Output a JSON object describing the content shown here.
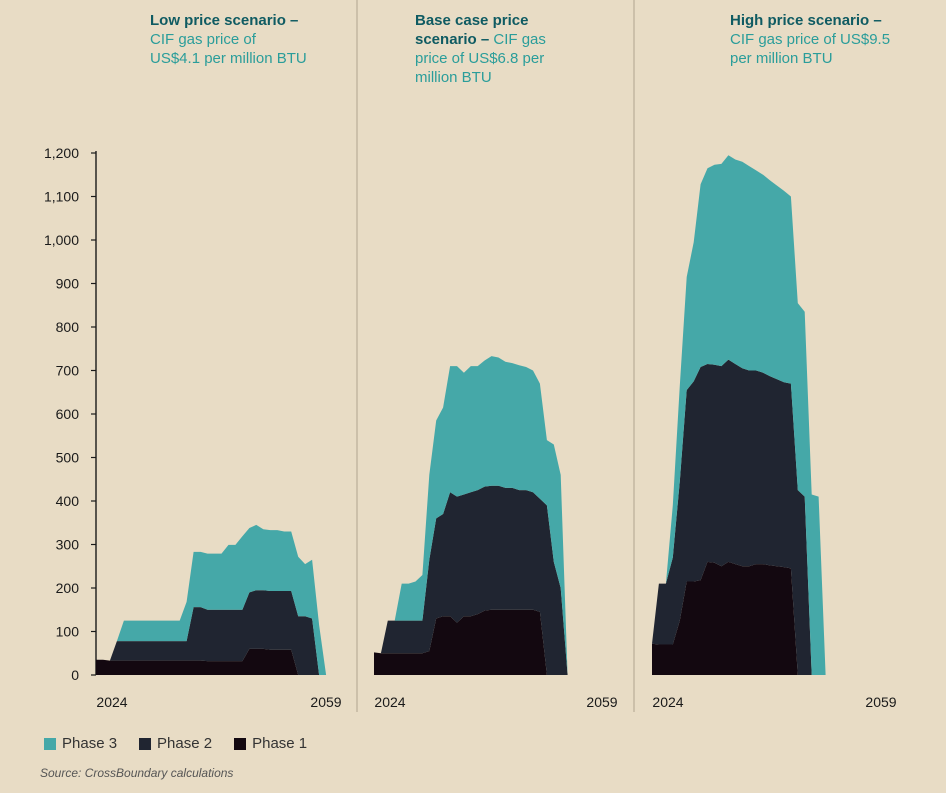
{
  "chart_data": {
    "type": "area",
    "stacked": true,
    "ylim": [
      0,
      1200
    ],
    "yticks": [
      0,
      100,
      200,
      300,
      400,
      500,
      600,
      700,
      800,
      900,
      1000,
      1100,
      1200
    ],
    "ytick_labels": [
      "0",
      "100",
      "200",
      "300",
      "400",
      "500",
      "600",
      "700",
      "800",
      "900",
      "1,000",
      "1,100",
      "1,200"
    ],
    "x_range": [
      2024,
      2059
    ],
    "x_tick_labels": [
      "2024",
      "2059"
    ],
    "legend": {
      "position": "bottom-left"
    },
    "colors": {
      "Phase 3": "#45a8a8",
      "Phase 2": "#202531",
      "Phase 1": "#130810"
    },
    "panels": [
      {
        "title_bold": "Low price scenario –",
        "title_lines": [
          "Low price scenario –",
          "CIF gas price of",
          "US$4.1 per million BTU"
        ],
        "x": [
          2024,
          2025,
          2026,
          2027,
          2028,
          2029,
          2030,
          2031,
          2032,
          2033,
          2034,
          2035,
          2036,
          2037,
          2038,
          2039,
          2040,
          2041,
          2042,
          2043,
          2044,
          2045,
          2046,
          2047,
          2048,
          2049,
          2050,
          2051,
          2052,
          2053,
          2054,
          2055,
          2056,
          2057,
          2058,
          2059
        ],
        "series": [
          {
            "name": "Phase 1",
            "values": [
              35,
              35,
              33,
              33,
              33,
              33,
              33,
              33,
              33,
              33,
              33,
              33,
              33,
              33,
              33,
              33,
              32,
              32,
              32,
              32,
              32,
              32,
              60,
              60,
              60,
              58,
              58,
              58,
              58,
              0,
              0,
              0,
              0,
              0,
              0,
              0
            ]
          },
          {
            "name": "Phase 2",
            "values": [
              0,
              0,
              0,
              45,
              45,
              45,
              45,
              45,
              45,
              45,
              45,
              45,
              45,
              45,
              123,
              123,
              118,
              118,
              118,
              118,
              118,
              118,
              130,
              135,
              135,
              135,
              135,
              135,
              135,
              135,
              135,
              130,
              0,
              0,
              0,
              0
            ]
          },
          {
            "name": "Phase 3",
            "values": [
              0,
              0,
              0,
              0,
              47,
              47,
              47,
              47,
              47,
              47,
              47,
              47,
              47,
              90,
              127,
              127,
              129,
              129,
              129,
              149,
              149,
              169,
              148,
              150,
              140,
              140,
              140,
              137,
              137,
              137,
              120,
              135,
              115,
              0,
              0,
              0
            ]
          }
        ]
      },
      {
        "title_bold": "Base case price scenario –",
        "title_lines": [
          "Base case price",
          "scenario – CIF gas",
          "price of US$6.8 per",
          "million BTU"
        ],
        "x": [
          2024,
          2025,
          2026,
          2027,
          2028,
          2029,
          2030,
          2031,
          2032,
          2033,
          2034,
          2035,
          2036,
          2037,
          2038,
          2039,
          2040,
          2041,
          2042,
          2043,
          2044,
          2045,
          2046,
          2047,
          2048,
          2049,
          2050,
          2051,
          2052,
          2053,
          2054,
          2055,
          2056,
          2057,
          2058,
          2059
        ],
        "series": [
          {
            "name": "Phase 1",
            "values": [
              52,
              50,
              50,
              50,
              50,
              50,
              50,
              50,
              55,
              130,
              135,
              135,
              120,
              135,
              135,
              140,
              148,
              150,
              150,
              150,
              150,
              150,
              150,
              150,
              145,
              0,
              0,
              0,
              0,
              0,
              0,
              0,
              0,
              0,
              0,
              0
            ]
          },
          {
            "name": "Phase 2",
            "values": [
              0,
              0,
              75,
              75,
              75,
              75,
              75,
              75,
              210,
              230,
              235,
              285,
              290,
              280,
              285,
              285,
              285,
              285,
              285,
              280,
              280,
              275,
              275,
              270,
              260,
              390,
              260,
              200,
              0,
              0,
              0,
              0,
              0,
              0,
              0,
              0
            ]
          },
          {
            "name": "Phase 3",
            "values": [
              0,
              0,
              0,
              0,
              85,
              85,
              90,
              105,
              195,
              225,
              245,
              290,
              300,
              280,
              290,
              285,
              290,
              298,
              295,
              290,
              287,
              287,
              283,
              280,
              265,
              150,
              270,
              260,
              0,
              0,
              0,
              0,
              0,
              0,
              0,
              0
            ]
          }
        ]
      },
      {
        "title_bold": "High price scenario –",
        "title_lines": [
          "High price scenario –",
          "CIF gas price of US$9.5",
          "per million BTU"
        ],
        "x": [
          2024,
          2025,
          2026,
          2027,
          2028,
          2029,
          2030,
          2031,
          2032,
          2033,
          2034,
          2035,
          2036,
          2037,
          2038,
          2039,
          2040,
          2041,
          2042,
          2043,
          2044,
          2045,
          2046,
          2047,
          2048,
          2049,
          2050,
          2051,
          2052,
          2053,
          2054,
          2055,
          2056,
          2057,
          2058,
          2059
        ],
        "series": [
          {
            "name": "Phase 1",
            "values": [
              72,
              70,
              70,
              70,
              125,
              215,
              215,
              218,
              260,
              258,
              250,
              260,
              255,
              250,
              250,
              255,
              255,
              252,
              250,
              248,
              245,
              0,
              0,
              0,
              0,
              0,
              0,
              0,
              0,
              0,
              0,
              0,
              0,
              0,
              0,
              0
            ]
          },
          {
            "name": "Phase 2",
            "values": [
              0,
              140,
              140,
              200,
              320,
              440,
              460,
              490,
              455,
              455,
              460,
              465,
              460,
              455,
              450,
              445,
              440,
              435,
              430,
              425,
              425,
              425,
              410,
              0,
              0,
              0,
              0,
              0,
              0,
              0,
              0,
              0,
              0,
              0,
              0,
              0
            ]
          },
          {
            "name": "Phase 3",
            "values": [
              0,
              0,
              0,
              120,
              220,
              260,
              320,
              420,
              450,
              460,
              465,
              470,
              470,
              475,
              470,
              460,
              455,
              450,
              445,
              440,
              430,
              430,
              425,
              415,
              410,
              0,
              0,
              0,
              0,
              0,
              0,
              0,
              0,
              0,
              0,
              0
            ]
          }
        ]
      }
    ]
  },
  "legend": {
    "items": [
      {
        "label": "Phase 3",
        "color": "#45a8a8"
      },
      {
        "label": "Phase 2",
        "color": "#202531"
      },
      {
        "label": "Phase 1",
        "color": "#130810"
      }
    ]
  },
  "source": "Source: CrossBoundary calculations"
}
